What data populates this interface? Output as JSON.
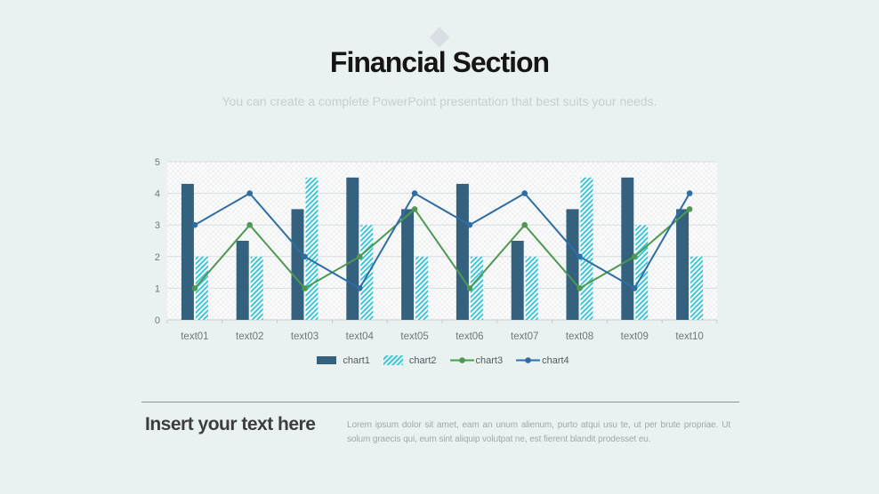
{
  "slide": {
    "title": "Financial Section",
    "subtitle": "You can create a complete PowerPoint presentation that best suits your needs."
  },
  "chart_data": {
    "type": "combo",
    "categories": [
      "text01",
      "text02",
      "text03",
      "text04",
      "text05",
      "text06",
      "text07",
      "text08",
      "text09",
      "text10"
    ],
    "series": [
      {
        "name": "chart1",
        "type": "bar",
        "fill": "solid",
        "color": "#33617e",
        "values": [
          4.3,
          2.5,
          3.5,
          4.5,
          3.5,
          4.3,
          2.5,
          3.5,
          4.5,
          3.5
        ]
      },
      {
        "name": "chart2",
        "type": "bar",
        "fill": "hatch",
        "color": "#2bc4d8",
        "values": [
          2,
          2,
          4.5,
          3,
          2,
          2,
          2,
          4.5,
          3,
          2
        ]
      },
      {
        "name": "chart3",
        "type": "line",
        "color": "#4e9950",
        "values": [
          1,
          3,
          1,
          2,
          3.5,
          1,
          3,
          1,
          2,
          3.5
        ]
      },
      {
        "name": "chart4",
        "type": "line",
        "color": "#2e6da6",
        "values": [
          3,
          4,
          2,
          1,
          4,
          3,
          4,
          2,
          1,
          4
        ]
      }
    ],
    "title": "",
    "xlabel": "",
    "ylabel": "",
    "ylim": [
      0,
      5
    ],
    "yticks": [
      0,
      1,
      2,
      3,
      4,
      5
    ],
    "grid": true,
    "legend_position": "bottom",
    "plot_background": "light-diagonal-crosshatch"
  },
  "footer": {
    "heading": "Insert your text here",
    "body": "Lorem ipsum dolor sit amet, eam an unum alienum, purto atqui usu te, ut per brute propriae. Ut solum graecis qui, eum sint aliquip volutpat ne, est fierent blandit prodesset eu."
  },
  "colors": {
    "background": "#e9f2f0",
    "diamond": "#d9dfe2",
    "title": "#151515",
    "subtitle": "#c7ced0",
    "axis_text": "#6e777b",
    "gridline": "#d9dde0",
    "axis_line": "#c6cbce",
    "plot_bg": "#fdfdfd",
    "plot_hatch": "#e3e6e8",
    "legend_text": "#50595f",
    "divider": "#8e9598",
    "heading": "#3d3d3d",
    "body_text": "#a1a7ab"
  }
}
